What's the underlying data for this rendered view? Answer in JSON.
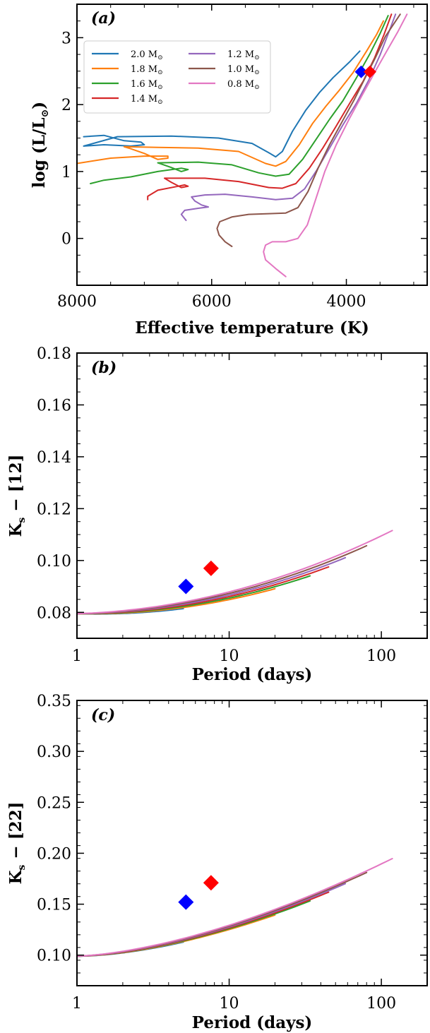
{
  "colors": {
    "2.0": "#1f77b4",
    "1.8": "#ff7f0e",
    "1.6": "#2ca02c",
    "1.4": "#d62728",
    "1.2": "#9467bd",
    "1.0": "#8c564b",
    "0.8": "#e377c2",
    "marker_blue": "#0000ff",
    "marker_red": "#ff0000"
  },
  "chart_data": [
    {
      "panel": "(a)",
      "type": "line",
      "xlabel": "Effective temperature (K)",
      "ylabel": "log (L/L⊙)",
      "xlim": [
        8000,
        2800
      ],
      "ylim": [
        -0.7,
        3.5
      ],
      "x_ticks": [
        8000,
        6000,
        4000
      ],
      "y_ticks": [
        0,
        1,
        2,
        3
      ],
      "legend_position": "upper-left",
      "series": [
        {
          "name": "2.0 M⊙",
          "color_key": "2.0",
          "points": [
            [
              7900,
              1.52
            ],
            [
              7600,
              1.54
            ],
            [
              7300,
              1.46
            ],
            [
              7050,
              1.44
            ],
            [
              7000,
              1.4
            ],
            [
              7200,
              1.38
            ],
            [
              7400,
              1.39
            ],
            [
              7600,
              1.4
            ],
            [
              7900,
              1.38
            ],
            [
              7400,
              1.52
            ],
            [
              6600,
              1.53
            ],
            [
              5900,
              1.5
            ],
            [
              5400,
              1.42
            ],
            [
              5150,
              1.28
            ],
            [
              5050,
              1.22
            ],
            [
              4950,
              1.3
            ],
            [
              4800,
              1.6
            ],
            [
              4600,
              1.92
            ],
            [
              4400,
              2.18
            ],
            [
              4200,
              2.4
            ],
            [
              3950,
              2.64
            ],
            [
              3800,
              2.8
            ]
          ]
        },
        {
          "name": "1.8 M⊙",
          "color_key": "1.8",
          "points": [
            [
              8000,
              1.12
            ],
            [
              7500,
              1.2
            ],
            [
              7000,
              1.23
            ],
            [
              6650,
              1.23
            ],
            [
              6650,
              1.2
            ],
            [
              6800,
              1.18
            ],
            [
              7000,
              1.27
            ],
            [
              7200,
              1.34
            ],
            [
              7300,
              1.37
            ],
            [
              6800,
              1.36
            ],
            [
              6200,
              1.35
            ],
            [
              5600,
              1.3
            ],
            [
              5200,
              1.12
            ],
            [
              5050,
              1.08
            ],
            [
              4900,
              1.15
            ],
            [
              4700,
              1.4
            ],
            [
              4500,
              1.72
            ],
            [
              4300,
              1.98
            ],
            [
              4100,
              2.22
            ],
            [
              3900,
              2.48
            ],
            [
              3700,
              2.8
            ],
            [
              3550,
              3.05
            ],
            [
              3450,
              3.25
            ]
          ]
        },
        {
          "name": "1.6 M⊙",
          "color_key": "1.6",
          "points": [
            [
              7800,
              0.82
            ],
            [
              7600,
              0.87
            ],
            [
              7200,
              0.92
            ],
            [
              6800,
              1.0
            ],
            [
              6450,
              1.05
            ],
            [
              6350,
              1.03
            ],
            [
              6450,
              1.0
            ],
            [
              6600,
              1.06
            ],
            [
              6800,
              1.13
            ],
            [
              6200,
              1.14
            ],
            [
              5700,
              1.1
            ],
            [
              5300,
              0.98
            ],
            [
              5050,
              0.93
            ],
            [
              4850,
              0.96
            ],
            [
              4650,
              1.18
            ],
            [
              4450,
              1.48
            ],
            [
              4250,
              1.78
            ],
            [
              4050,
              2.06
            ],
            [
              3850,
              2.4
            ],
            [
              3650,
              2.76
            ],
            [
              3500,
              3.06
            ],
            [
              3380,
              3.33
            ]
          ]
        },
        {
          "name": "1.4 M⊙",
          "color_key": "1.4",
          "points": [
            [
              6950,
              0.58
            ],
            [
              6950,
              0.63
            ],
            [
              6800,
              0.72
            ],
            [
              6500,
              0.78
            ],
            [
              6400,
              0.8
            ],
            [
              6350,
              0.78
            ],
            [
              6450,
              0.76
            ],
            [
              6600,
              0.84
            ],
            [
              6700,
              0.9
            ],
            [
              6100,
              0.9
            ],
            [
              5600,
              0.85
            ],
            [
              5150,
              0.76
            ],
            [
              4950,
              0.75
            ],
            [
              4750,
              0.82
            ],
            [
              4550,
              1.05
            ],
            [
              4350,
              1.35
            ],
            [
              4150,
              1.68
            ],
            [
              3950,
              2.02
            ],
            [
              3750,
              2.35
            ],
            [
              3580,
              2.7
            ],
            [
              3440,
              3.05
            ],
            [
              3330,
              3.35
            ]
          ]
        },
        {
          "name": "1.2 M⊙",
          "color_key": "1.2",
          "points": [
            [
              6380,
              0.27
            ],
            [
              6450,
              0.36
            ],
            [
              6400,
              0.42
            ],
            [
              6200,
              0.45
            ],
            [
              6050,
              0.47
            ],
            [
              6150,
              0.5
            ],
            [
              6250,
              0.56
            ],
            [
              6300,
              0.62
            ],
            [
              6100,
              0.65
            ],
            [
              5800,
              0.66
            ],
            [
              5400,
              0.62
            ],
            [
              5050,
              0.58
            ],
            [
              4800,
              0.6
            ],
            [
              4620,
              0.74
            ],
            [
              4440,
              1.02
            ],
            [
              4250,
              1.35
            ],
            [
              4050,
              1.7
            ],
            [
              3850,
              2.02
            ],
            [
              3670,
              2.36
            ],
            [
              3500,
              2.74
            ],
            [
              3370,
              3.08
            ],
            [
              3270,
              3.35
            ]
          ]
        },
        {
          "name": "1.0 M⊙",
          "color_key": "1.0",
          "points": [
            [
              5700,
              -0.12
            ],
            [
              5800,
              -0.05
            ],
            [
              5890,
              0.05
            ],
            [
              5920,
              0.15
            ],
            [
              5880,
              0.25
            ],
            [
              5700,
              0.32
            ],
            [
              5450,
              0.36
            ],
            [
              5150,
              0.37
            ],
            [
              4900,
              0.38
            ],
            [
              4720,
              0.46
            ],
            [
              4570,
              0.7
            ],
            [
              4420,
              1.05
            ],
            [
              4250,
              1.4
            ],
            [
              4060,
              1.75
            ],
            [
              3880,
              2.08
            ],
            [
              3720,
              2.4
            ],
            [
              3570,
              2.7
            ],
            [
              3420,
              3.02
            ],
            [
              3300,
              3.2
            ],
            [
              3200,
              3.35
            ]
          ]
        },
        {
          "name": "0.8 M⊙",
          "color_key": "0.8",
          "points": [
            [
              4900,
              -0.57
            ],
            [
              5050,
              -0.45
            ],
            [
              5200,
              -0.32
            ],
            [
              5230,
              -0.2
            ],
            [
              5200,
              -0.1
            ],
            [
              5100,
              -0.05
            ],
            [
              4900,
              -0.05
            ],
            [
              4720,
              0.0
            ],
            [
              4580,
              0.2
            ],
            [
              4450,
              0.6
            ],
            [
              4320,
              1.0
            ],
            [
              4150,
              1.4
            ],
            [
              3950,
              1.8
            ],
            [
              3760,
              2.15
            ],
            [
              3580,
              2.48
            ],
            [
              3400,
              2.8
            ],
            [
              3240,
              3.08
            ],
            [
              3100,
              3.35
            ]
          ]
        }
      ],
      "markers": [
        {
          "x": 3780,
          "y": 2.49,
          "color_key": "marker_blue",
          "shape": "diamond"
        },
        {
          "x": 3650,
          "y": 2.49,
          "color_key": "marker_red",
          "shape": "diamond"
        }
      ]
    },
    {
      "panel": "(b)",
      "type": "line",
      "xlabel": "Period (days)",
      "ylabel": "Ks − [12]",
      "x_scale": "log",
      "xlim": [
        1,
        200
      ],
      "ylim": [
        0.07,
        0.18
      ],
      "x_ticks": [
        1,
        10,
        100
      ],
      "y_ticks": [
        0.08,
        0.1,
        0.12,
        0.14,
        0.16,
        0.18
      ],
      "model": {
        "base": 0.0795,
        "curve": 0.0066,
        "exponent": 2.0,
        "offset_from_index": -0.0012
      },
      "series_end_period": {
        "2.0": 5,
        "1.8": 20,
        "1.6": 34,
        "1.4": 45,
        "1.2": 58,
        "1.0": 80,
        "0.8": 118
      },
      "markers": [
        {
          "x": 5.2,
          "y": 0.09,
          "color_key": "marker_blue",
          "shape": "diamond"
        },
        {
          "x": 7.6,
          "y": 0.097,
          "color_key": "marker_red",
          "shape": "diamond"
        }
      ]
    },
    {
      "panel": "(c)",
      "type": "line",
      "xlabel": "Period (days)",
      "ylabel": "Ks − [22]",
      "x_scale": "log",
      "xlim": [
        1,
        200
      ],
      "ylim": [
        0.07,
        0.35
      ],
      "x_ticks": [
        1,
        10,
        100
      ],
      "y_ticks": [
        0.1,
        0.15,
        0.2,
        0.25,
        0.3,
        0.35
      ],
      "model": {
        "base": 0.099,
        "curve": 0.0278,
        "exponent": 1.62,
        "offset_from_index": -0.0017
      },
      "series_end_period": {
        "2.0": 5,
        "1.8": 20,
        "1.6": 34,
        "1.4": 45,
        "1.2": 58,
        "1.0": 80,
        "0.8": 118
      },
      "markers": [
        {
          "x": 5.2,
          "y": 0.152,
          "color_key": "marker_blue",
          "shape": "diamond"
        },
        {
          "x": 7.6,
          "y": 0.171,
          "color_key": "marker_red",
          "shape": "diamond"
        }
      ]
    }
  ],
  "panels": {
    "a": {
      "label": "(a)",
      "xlabel": "Effective temperature (K)",
      "ylabel_main": "log (L/L",
      "ylabel_sub": "⊙",
      "ylabel_close": ")"
    },
    "b": {
      "label": "(b)",
      "xlabel": "Period (days)",
      "ylabel_main": "K",
      "ylabel_sub": "s",
      "ylabel_rest": " − [12]"
    },
    "c": {
      "label": "(c)",
      "xlabel": "Period (days)",
      "ylabel_main": "K",
      "ylabel_sub": "s",
      "ylabel_rest": " − [22]"
    }
  },
  "legend": {
    "items": [
      {
        "mass": "2.0 M",
        "unit": "⊙",
        "color_key": "2.0"
      },
      {
        "mass": "1.8 M",
        "unit": "⊙",
        "color_key": "1.8"
      },
      {
        "mass": "1.6 M",
        "unit": "⊙",
        "color_key": "1.6"
      },
      {
        "mass": "1.4 M",
        "unit": "⊙",
        "color_key": "1.4"
      },
      {
        "mass": "1.2 M",
        "unit": "⊙",
        "color_key": "1.2"
      },
      {
        "mass": "1.0 M",
        "unit": "⊙",
        "color_key": "1.0"
      },
      {
        "mass": "0.8 M",
        "unit": "⊙",
        "color_key": "0.8"
      }
    ]
  }
}
